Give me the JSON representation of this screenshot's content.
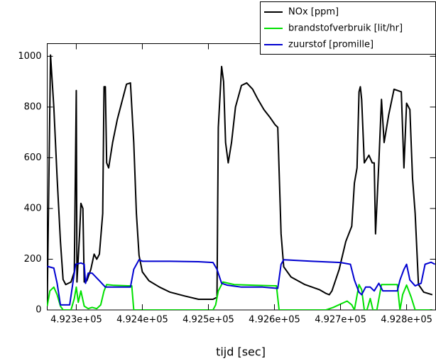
{
  "chart_data": {
    "type": "line",
    "x_label": "tijd [sec]",
    "xlim": [
      492256,
      492844
    ],
    "ylim": [
      0,
      1050
    ],
    "xticks": [
      {
        "value": 492300,
        "label": "4.923e+05"
      },
      {
        "value": 492400,
        "label": "4.924e+05"
      },
      {
        "value": 492500,
        "label": "4.925e+05"
      },
      {
        "value": 492600,
        "label": "4.926e+05"
      },
      {
        "value": 492700,
        "label": "4.927e+05"
      },
      {
        "value": 492800,
        "label": "4.928e+05"
      }
    ],
    "yticks": [
      0,
      200,
      400,
      600,
      800,
      1000
    ],
    "grid": false,
    "legend": "top-right",
    "series": [
      {
        "name": "NOx [ppm]",
        "color": "#000000",
        "x": [
          492256,
          492261,
          492266,
          492271,
          492276,
          492280,
          492284,
          492292,
          492297,
          492300,
          492301,
          492305,
          492307,
          492310,
          492312,
          492316,
          492322,
          492327,
          492331,
          492335,
          492340,
          492342,
          492344,
          492346,
          492349,
          492355,
          492362,
          492370,
          492376,
          492382,
          492387,
          492391,
          492395,
          492400,
          492410,
          492426,
          492442,
          492464,
          492485,
          492507,
          492513,
          492515,
          492520,
          492523,
          492526,
          492530,
          492535,
          492541,
          492550,
          492558,
          492567,
          492575,
          492584,
          492593,
          492601,
          492605,
          492610,
          492614,
          492625,
          492646,
          492668,
          492678,
          492683,
          492687,
          492698,
          492708,
          492717,
          492721,
          492725,
          492728,
          492730,
          492732,
          492736,
          492743,
          492748,
          492751,
          492753,
          492758,
          492762,
          492766,
          492773,
          492781,
          492792,
          492796,
          492800,
          492805,
          492809,
          492813,
          492818,
          492826,
          492839
        ],
        "values": [
          20,
          1005,
          800,
          520,
          270,
          120,
          100,
          110,
          150,
          865,
          110,
          300,
          420,
          400,
          110,
          115,
          160,
          220,
          200,
          220,
          380,
          880,
          880,
          580,
          560,
          660,
          750,
          830,
          890,
          895,
          660,
          380,
          215,
          150,
          115,
          90,
          70,
          55,
          42,
          42,
          50,
          720,
          960,
          900,
          660,
          580,
          660,
          800,
          885,
          895,
          870,
          830,
          790,
          760,
          730,
          720,
          300,
          170,
          130,
          100,
          80,
          65,
          60,
          75,
          160,
          270,
          330,
          500,
          560,
          860,
          880,
          830,
          580,
          610,
          580,
          580,
          300,
          580,
          830,
          660,
          770,
          870,
          860,
          560,
          815,
          790,
          520,
          380,
          100,
          70,
          60
        ]
      },
      {
        "name": "brandstofverbruik [lit/hr]",
        "color": "#00e000",
        "x": [
          492256,
          492260,
          492266,
          492271,
          492276,
          492280,
          492292,
          492297,
          492300,
          492303,
          492307,
          492312,
          492318,
          492324,
          492331,
          492337,
          492342,
          492346,
          492357,
          492378,
          492384,
          492387,
          492507,
          492511,
          492515,
          492522,
          492539,
          492571,
          492603,
          492607,
          492678,
          492689,
          492710,
          492717,
          492721,
          492728,
          492732,
          492736,
          492740,
          492745,
          492749,
          492755,
          492762,
          492773,
          492786,
          492790,
          492794,
          492800,
          492807,
          492813,
          492839
        ],
        "values": [
          15,
          75,
          90,
          60,
          15,
          0,
          0,
          45,
          90,
          30,
          75,
          15,
          5,
          10,
          5,
          20,
          75,
          100,
          97,
          95,
          95,
          0,
          0,
          20,
          75,
          110,
          100,
          97,
          95,
          0,
          0,
          10,
          35,
          20,
          0,
          100,
          80,
          0,
          0,
          45,
          0,
          0,
          100,
          100,
          100,
          0,
          60,
          98,
          50,
          0,
          0
        ]
      },
      {
        "name": "zuurstof [promille]",
        "color": "#0000d0",
        "x": [
          492256,
          492266,
          492271,
          492276,
          492290,
          492297,
          492299,
          492307,
          492312,
          492314,
          492318,
          492324,
          492335,
          492344,
          492357,
          492382,
          492387,
          492395,
          492400,
          492442,
          492485,
          492507,
          492513,
          492520,
          492528,
          492550,
          492582,
          492605,
          492610,
          492614,
          492657,
          492700,
          492715,
          492721,
          492728,
          492732,
          492738,
          492745,
          492751,
          492758,
          492764,
          492786,
          492790,
          492796,
          492800,
          492805,
          492813,
          492822,
          492828,
          492837,
          492843
        ],
        "values": [
          172,
          165,
          105,
          20,
          20,
          145,
          180,
          185,
          180,
          105,
          145,
          145,
          115,
          90,
          90,
          90,
          160,
          198,
          192,
          192,
          190,
          187,
          160,
          105,
          98,
          90,
          90,
          85,
          180,
          198,
          192,
          187,
          180,
          118,
          70,
          60,
          90,
          90,
          75,
          105,
          75,
          75,
          118,
          160,
          180,
          118,
          95,
          105,
          180,
          188,
          180
        ]
      }
    ]
  }
}
